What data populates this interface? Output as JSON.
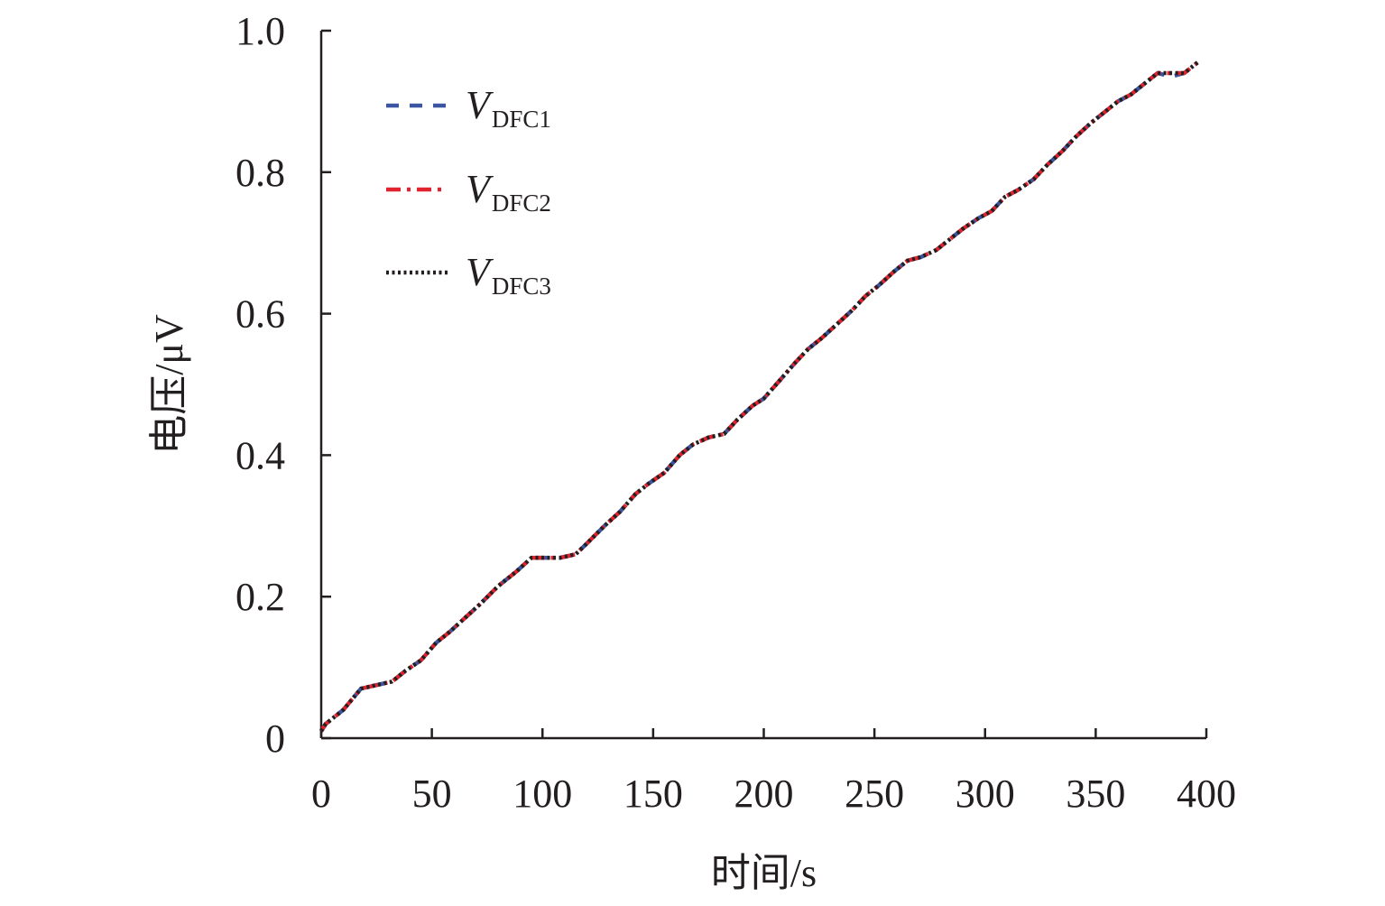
{
  "chart_data": {
    "type": "line",
    "title": "",
    "xlabel": "时间/s",
    "ylabel": "电压/μV",
    "xlim": [
      0,
      400
    ],
    "ylim": [
      0,
      1.0
    ],
    "x_ticks": [
      0,
      50,
      100,
      150,
      200,
      250,
      300,
      350,
      400
    ],
    "x_tick_labels": [
      "0",
      "50",
      "100",
      "150",
      "200",
      "250",
      "300",
      "350",
      "400"
    ],
    "y_ticks": [
      0,
      0.2,
      0.4,
      0.6,
      0.8,
      1.0
    ],
    "y_tick_labels": [
      "0",
      "0.2",
      "0.4",
      "0.6",
      "0.8",
      "1.0"
    ],
    "grid": false,
    "legend_position": "top-left",
    "x": [
      0,
      2,
      10,
      18,
      25,
      32,
      38,
      45,
      52,
      58,
      65,
      72,
      80,
      88,
      95,
      101,
      108,
      115,
      120,
      128,
      135,
      142,
      148,
      155,
      162,
      168,
      175,
      182,
      188,
      195,
      200,
      207,
      214,
      220,
      226,
      233,
      240,
      246,
      252,
      259,
      265,
      271,
      278,
      284,
      290,
      297,
      303,
      309,
      315,
      322,
      328,
      335,
      341,
      348,
      354,
      360,
      366,
      372,
      378,
      384,
      390,
      396
    ],
    "series": [
      {
        "name": "V",
        "subscript": "DFC1",
        "color": "#3b55a3",
        "dash": "dashed",
        "values": [
          0.01,
          0.02,
          0.04,
          0.07,
          0.075,
          0.08,
          0.095,
          0.11,
          0.135,
          0.15,
          0.17,
          0.19,
          0.215,
          0.235,
          0.255,
          0.255,
          0.255,
          0.26,
          0.275,
          0.3,
          0.32,
          0.345,
          0.36,
          0.375,
          0.4,
          0.415,
          0.425,
          0.43,
          0.45,
          0.47,
          0.48,
          0.505,
          0.53,
          0.55,
          0.565,
          0.585,
          0.605,
          0.625,
          0.64,
          0.66,
          0.675,
          0.68,
          0.69,
          0.705,
          0.72,
          0.735,
          0.745,
          0.765,
          0.775,
          0.79,
          0.81,
          0.83,
          0.85,
          0.87,
          0.885,
          0.9,
          0.91,
          0.925,
          0.94,
          0.935,
          0.94,
          0.955
        ]
      },
      {
        "name": "V",
        "subscript": "DFC2",
        "color": "#e0232e",
        "dash": "dashdot",
        "values": [
          0.01,
          0.02,
          0.04,
          0.07,
          0.075,
          0.08,
          0.095,
          0.11,
          0.135,
          0.15,
          0.17,
          0.19,
          0.215,
          0.235,
          0.255,
          0.255,
          0.255,
          0.26,
          0.275,
          0.3,
          0.32,
          0.345,
          0.36,
          0.375,
          0.4,
          0.415,
          0.425,
          0.43,
          0.45,
          0.47,
          0.48,
          0.505,
          0.53,
          0.55,
          0.565,
          0.585,
          0.605,
          0.625,
          0.64,
          0.66,
          0.675,
          0.68,
          0.69,
          0.705,
          0.72,
          0.735,
          0.745,
          0.765,
          0.775,
          0.79,
          0.81,
          0.83,
          0.85,
          0.87,
          0.885,
          0.9,
          0.91,
          0.925,
          0.94,
          0.94,
          0.94,
          0.955
        ]
      },
      {
        "name": "V",
        "subscript": "DFC3",
        "color": "#231f20",
        "dash": "dotted",
        "values": [
          0.01,
          0.02,
          0.04,
          0.07,
          0.075,
          0.08,
          0.095,
          0.11,
          0.135,
          0.15,
          0.17,
          0.19,
          0.215,
          0.235,
          0.255,
          0.255,
          0.255,
          0.26,
          0.275,
          0.3,
          0.32,
          0.345,
          0.36,
          0.375,
          0.4,
          0.415,
          0.425,
          0.43,
          0.45,
          0.47,
          0.48,
          0.505,
          0.53,
          0.55,
          0.565,
          0.585,
          0.605,
          0.625,
          0.64,
          0.66,
          0.675,
          0.68,
          0.69,
          0.705,
          0.72,
          0.735,
          0.745,
          0.765,
          0.775,
          0.79,
          0.81,
          0.83,
          0.85,
          0.87,
          0.885,
          0.9,
          0.91,
          0.925,
          0.94,
          0.94,
          0.94,
          0.955
        ]
      }
    ]
  }
}
